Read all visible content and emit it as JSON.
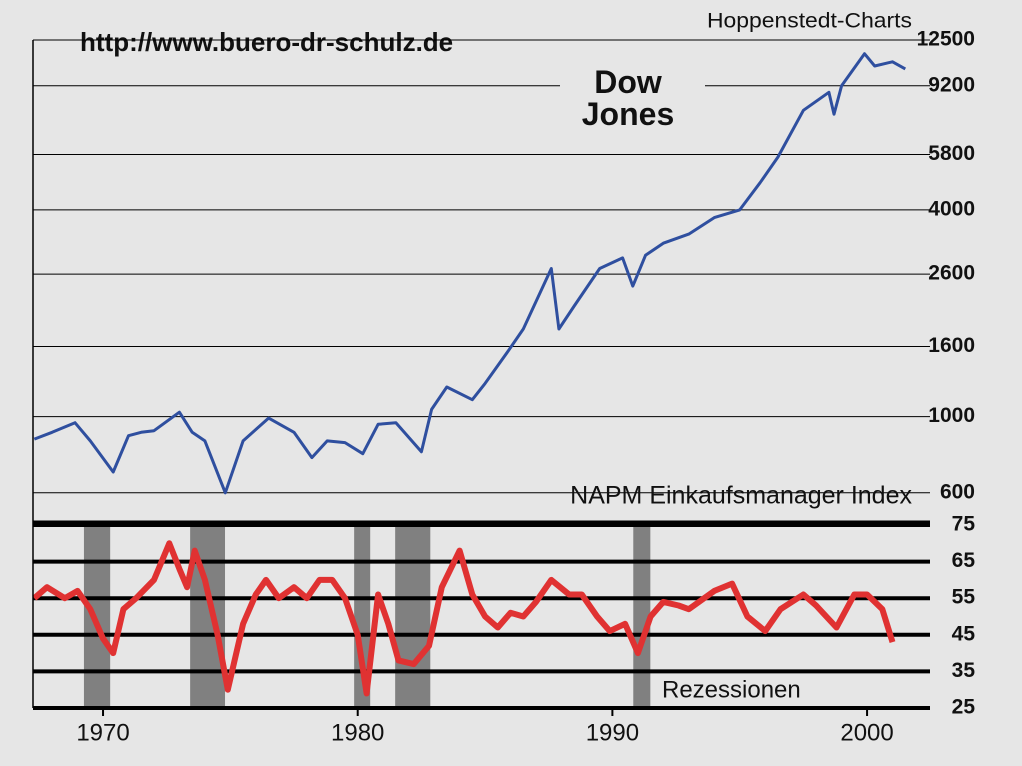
{
  "header": {
    "url": "http://www.buero-dr-schulz.de",
    "source": "Hoppenstedt-Charts"
  },
  "chart_data": [
    {
      "type": "line",
      "log": true,
      "grid": true,
      "xlim": [
        1967.25,
        2002
      ],
      "ylim": [
        500,
        12500
      ],
      "yticks": [
        600,
        1000,
        1600,
        2600,
        4000,
        5800,
        9200,
        12500
      ],
      "series": [
        {
          "name": "Dow Jones",
          "color": "#2f4f9f",
          "x": [
            1967.3,
            1968,
            1968.9,
            1969.5,
            1970.4,
            1971,
            1971.5,
            1972,
            1973,
            1973.5,
            1974,
            1974.8,
            1975.5,
            1976.5,
            1977.5,
            1978.2,
            1978.8,
            1979.5,
            1980.2,
            1980.8,
            1981.5,
            1982.5,
            1982.9,
            1983.5,
            1984.5,
            1985,
            1985.9,
            1986.5,
            1987.6,
            1987.9,
            1988.5,
            1989.5,
            1990.4,
            1990.8,
            1991.3,
            1992,
            1993,
            1994,
            1995,
            1995.8,
            1996.5,
            1997.5,
            1998.5,
            1998.7,
            1999,
            1999.9,
            2000.3,
            2001,
            2001.5
          ],
          "values": [
            860,
            900,
            960,
            850,
            690,
            880,
            900,
            910,
            1030,
            900,
            850,
            600,
            850,
            990,
            900,
            760,
            850,
            840,
            780,
            950,
            960,
            790,
            1050,
            1220,
            1120,
            1250,
            1550,
            1800,
            2700,
            1800,
            2100,
            2700,
            2900,
            2400,
            2950,
            3200,
            3400,
            3800,
            4000,
            4800,
            5700,
            7800,
            8800,
            7600,
            9200,
            11400,
            10500,
            10800,
            10300
          ]
        }
      ]
    },
    {
      "type": "line",
      "grid": true,
      "title": "NAPM Einkaufsmanager Index",
      "xlim": [
        1967.25,
        2002
      ],
      "ylim": [
        25,
        75
      ],
      "yticks": [
        25,
        35,
        45,
        55,
        65,
        75
      ],
      "xticks": [
        1970,
        1980,
        1990,
        2000
      ],
      "recession_label": "Rezessionen",
      "recession_color": "#808080",
      "recessions": [
        [
          1969.25,
          1970.28
        ],
        [
          1973.42,
          1974.79
        ],
        [
          1979.86,
          1980.49
        ],
        [
          1981.47,
          1982.85
        ],
        [
          1990.82,
          1991.49
        ]
      ],
      "series": [
        {
          "color": "#e03232",
          "x": [
            1967.3,
            1967.8,
            1968.5,
            1969,
            1969.5,
            1970,
            1970.4,
            1970.8,
            1971.3,
            1972,
            1972.6,
            1973,
            1973.3,
            1973.6,
            1974,
            1974.5,
            1974.9,
            1975.5,
            1976,
            1976.4,
            1976.9,
            1977.5,
            1978,
            1978.5,
            1979,
            1979.5,
            1980,
            1980.35,
            1980.8,
            1981.2,
            1981.6,
            1982.2,
            1982.8,
            1983.3,
            1984,
            1984.5,
            1985,
            1985.5,
            1986,
            1986.5,
            1987,
            1987.6,
            1988.3,
            1988.8,
            1989.4,
            1989.9,
            1990.5,
            1991,
            1991.5,
            1992,
            1992.6,
            1993,
            1994,
            1994.7,
            1995.3,
            1996,
            1996.6,
            1997.5,
            1998,
            1998.8,
            1999.5,
            2000,
            2000.6,
            2001
          ],
          "values": [
            55,
            58,
            55,
            57,
            52,
            44,
            40,
            52,
            55,
            60,
            70,
            63,
            58,
            68,
            60,
            45,
            30,
            48,
            56,
            60,
            55,
            58,
            55,
            60,
            60,
            55,
            45,
            29,
            56,
            48,
            38,
            37,
            42,
            58,
            68,
            56,
            50,
            47,
            51,
            50,
            54,
            60,
            56,
            56,
            50,
            46,
            48,
            40,
            50,
            54,
            53,
            52,
            57,
            59,
            50,
            46,
            52,
            56,
            53,
            47,
            56,
            56,
            52,
            43
          ]
        }
      ]
    }
  ]
}
